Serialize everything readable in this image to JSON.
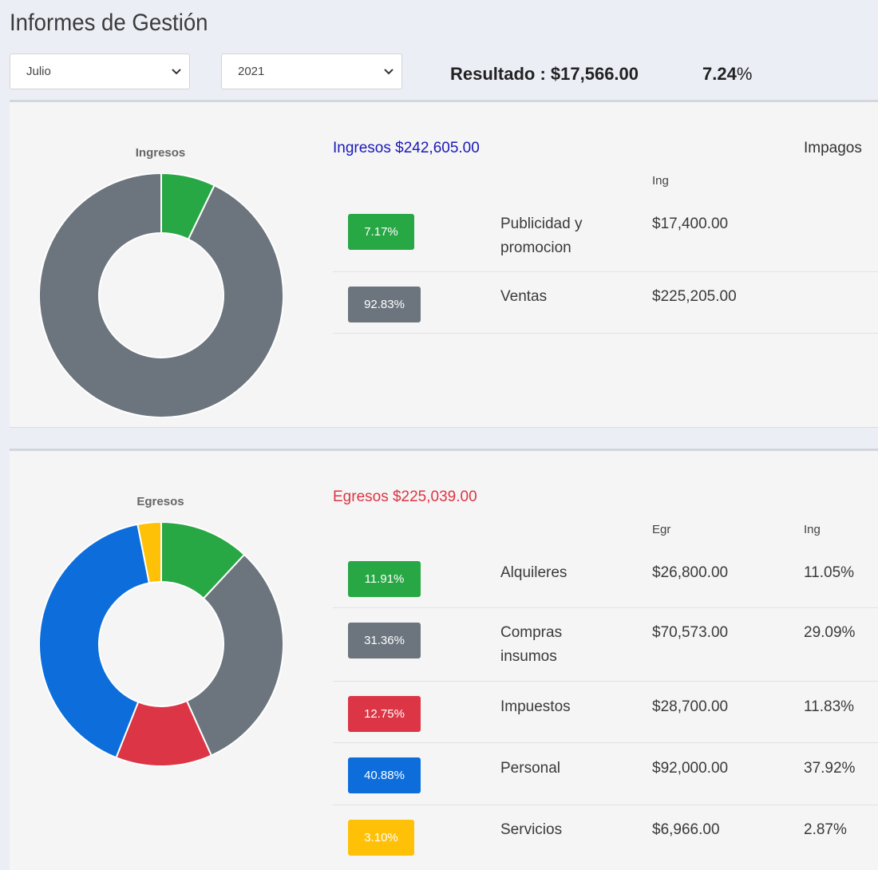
{
  "page": {
    "title": "Informes de Gestión"
  },
  "filters": {
    "month": "Julio",
    "year": "2021"
  },
  "summary": {
    "resultado_label": "Resultado : $17,566.00",
    "percentage_value": "7.24",
    "percentage_symbol": "%"
  },
  "ingresos": {
    "chart_title": "Ingresos",
    "heading": "Ingresos $242,605.00",
    "heading_color": "#1a1ab8",
    "impagos_label": "Impagos",
    "col_ing": "Ing",
    "rows": [
      {
        "badge": "7.17%",
        "label": "Publicidad y promocion",
        "amount": "$17,400.00",
        "color": "#28a745"
      },
      {
        "badge": "92.83%",
        "label": "Ventas",
        "amount": "$225,205.00",
        "color": "#6c757d"
      }
    ]
  },
  "egresos": {
    "chart_title": "Egresos",
    "heading": "Egresos $225,039.00",
    "heading_color": "#dc3545",
    "col_egr": "Egr",
    "col_ing": "Ing",
    "rows": [
      {
        "badge": "11.91%",
        "label": "Alquileres",
        "amount": "$26,800.00",
        "pct": "11.05%",
        "color": "#28a745"
      },
      {
        "badge": "31.36%",
        "label": "Compras insumos",
        "amount": "$70,573.00",
        "pct": "29.09%",
        "color": "#6c757d"
      },
      {
        "badge": "12.75%",
        "label": "Impuestos",
        "amount": "$28,700.00",
        "pct": "11.83%",
        "color": "#dc3545"
      },
      {
        "badge": "40.88%",
        "label": "Personal",
        "amount": "$92,000.00",
        "pct": "37.92%",
        "color": "#0d6edb"
      },
      {
        "badge": "3.10%",
        "label": "Servicios",
        "amount": "$6,966.00",
        "pct": "2.87%",
        "color": "#ffc107"
      }
    ]
  },
  "chart_data": [
    {
      "type": "pie",
      "title": "Ingresos",
      "categories": [
        "Publicidad y promocion",
        "Ventas"
      ],
      "values": [
        7.17,
        92.83
      ],
      "colors": [
        "#28a745",
        "#6c757d"
      ],
      "donut": true
    },
    {
      "type": "pie",
      "title": "Egresos",
      "categories": [
        "Alquileres",
        "Compras insumos",
        "Impuestos",
        "Personal",
        "Servicios"
      ],
      "values": [
        11.91,
        31.36,
        12.75,
        40.88,
        3.1
      ],
      "colors": [
        "#28a745",
        "#6c757d",
        "#dc3545",
        "#0d6edb",
        "#ffc107"
      ],
      "donut": true
    }
  ]
}
